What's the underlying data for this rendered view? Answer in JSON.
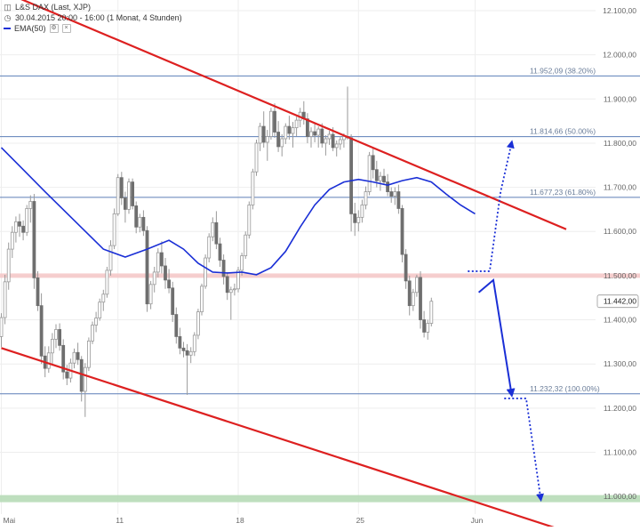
{
  "legend": {
    "title": "L&S DAX (Last, XJP)",
    "period": "30.04.2015 20:00 - 16:00 (1 Monat, 4 Stunden)",
    "ema_label": "EMA(50)",
    "title_icon": "chart-icon",
    "period_icon": "clock-icon"
  },
  "chart_data": {
    "type": "candlestick",
    "y_range": [
      10960,
      12100
    ],
    "y_ticks": [
      {
        "value": 11000,
        "label": "11.000,00"
      },
      {
        "value": 11100,
        "label": "11.100,00"
      },
      {
        "value": 11200,
        "label": "11.200,00"
      },
      {
        "value": 11300,
        "label": "11.300,00"
      },
      {
        "value": 11400,
        "label": "11.400,00"
      },
      {
        "value": 11500,
        "label": "11.500,00"
      },
      {
        "value": 11600,
        "label": "11.600,00"
      },
      {
        "value": 11700,
        "label": "11.700,00"
      },
      {
        "value": 11800,
        "label": "11.800,00"
      },
      {
        "value": 11900,
        "label": "11.900,00"
      },
      {
        "value": 12000,
        "label": "12.000,00"
      },
      {
        "value": 12100,
        "label": "12.100,00"
      }
    ],
    "x_ticks": [
      {
        "index": 0,
        "label": "Mai"
      },
      {
        "index": 32,
        "label": "11"
      },
      {
        "index": 65,
        "label": "18"
      },
      {
        "index": 98,
        "label": "25"
      },
      {
        "index": 130,
        "label": "Jun"
      }
    ],
    "last_price": {
      "value": 11442,
      "label": "11.442,00"
    },
    "fib_levels": [
      {
        "value": 11952.09,
        "label": "11.952,09 (38.20%)"
      },
      {
        "value": 11814.66,
        "label": "11.814,66 (50.00%)"
      },
      {
        "value": 11677.23,
        "label": "11.677,23 (61.80%)"
      },
      {
        "value": 11232.32,
        "label": "11.232,32 (100.00%)"
      }
    ],
    "support_band": 11500,
    "target_band": 10995,
    "trendlines": [
      {
        "from": [
          0,
          12145
        ],
        "to": [
          155,
          11605
        ]
      },
      {
        "from": [
          0,
          11336
        ],
        "to": [
          162,
          10902
        ]
      }
    ],
    "candles": [
      [
        11362,
        11415,
        11338,
        11405
      ],
      [
        11405,
        11502,
        11390,
        11486
      ],
      [
        11486,
        11575,
        11468,
        11560
      ],
      [
        11560,
        11612,
        11540,
        11598
      ],
      [
        11598,
        11634,
        11575,
        11622
      ],
      [
        11622,
        11640,
        11588,
        11612
      ],
      [
        11612,
        11625,
        11580,
        11598
      ],
      [
        11598,
        11660,
        11590,
        11652
      ],
      [
        11652,
        11682,
        11620,
        11668
      ],
      [
        11668,
        11685,
        11470,
        11495
      ],
      [
        11495,
        11510,
        11420,
        11432
      ],
      [
        11432,
        11460,
        11300,
        11318
      ],
      [
        11318,
        11340,
        11270,
        11290
      ],
      [
        11290,
        11340,
        11280,
        11325
      ],
      [
        11325,
        11370,
        11300,
        11356
      ],
      [
        11356,
        11390,
        11336,
        11378
      ],
      [
        11378,
        11392,
        11330,
        11342
      ],
      [
        11342,
        11356,
        11265,
        11282
      ],
      [
        11282,
        11298,
        11252,
        11268
      ],
      [
        11268,
        11312,
        11258,
        11302
      ],
      [
        11302,
        11335,
        11290,
        11326
      ],
      [
        11326,
        11348,
        11298,
        11310
      ],
      [
        11310,
        11318,
        11215,
        11238
      ],
      [
        11238,
        11302,
        11180,
        11292
      ],
      [
        11292,
        11360,
        11284,
        11352
      ],
      [
        11352,
        11396,
        11345,
        11388
      ],
      [
        11388,
        11418,
        11372,
        11404
      ],
      [
        11404,
        11448,
        11398,
        11440
      ],
      [
        11440,
        11468,
        11420,
        11458
      ],
      [
        11458,
        11520,
        11450,
        11512
      ],
      [
        11512,
        11580,
        11500,
        11568
      ],
      [
        11568,
        11652,
        11560,
        11640
      ],
      [
        11640,
        11730,
        11635,
        11722
      ],
      [
        11722,
        11735,
        11660,
        11676
      ],
      [
        11676,
        11690,
        11620,
        11650
      ],
      [
        11650,
        11720,
        11640,
        11712
      ],
      [
        11712,
        11720,
        11650,
        11658
      ],
      [
        11658,
        11668,
        11596,
        11610
      ],
      [
        11610,
        11640,
        11598,
        11632
      ],
      [
        11632,
        11648,
        11590,
        11602
      ],
      [
        11602,
        11612,
        11418,
        11436
      ],
      [
        11436,
        11488,
        11424,
        11480
      ],
      [
        11480,
        11520,
        11462,
        11508
      ],
      [
        11508,
        11562,
        11496,
        11552
      ],
      [
        11552,
        11578,
        11505,
        11522
      ],
      [
        11522,
        11540,
        11470,
        11490
      ],
      [
        11490,
        11515,
        11460,
        11472
      ],
      [
        11472,
        11486,
        11395,
        11412
      ],
      [
        11412,
        11428,
        11346,
        11362
      ],
      [
        11362,
        11382,
        11322,
        11336
      ],
      [
        11336,
        11350,
        11315,
        11330
      ],
      [
        11330,
        11345,
        11230,
        11320
      ],
      [
        11320,
        11338,
        11302,
        11328
      ],
      [
        11328,
        11372,
        11318,
        11365
      ],
      [
        11365,
        11425,
        11356,
        11418
      ],
      [
        11418,
        11482,
        11410,
        11476
      ],
      [
        11476,
        11548,
        11470,
        11540
      ],
      [
        11540,
        11596,
        11530,
        11588
      ],
      [
        11588,
        11632,
        11578,
        11620
      ],
      [
        11620,
        11646,
        11560,
        11572
      ],
      [
        11572,
        11586,
        11520,
        11535
      ],
      [
        11535,
        11548,
        11480,
        11498
      ],
      [
        11498,
        11508,
        11445,
        11462
      ],
      [
        11462,
        11475,
        11400,
        11468
      ],
      [
        11468,
        11482,
        11455,
        11470
      ],
      [
        11470,
        11520,
        11462,
        11512
      ],
      [
        11512,
        11552,
        11500,
        11545
      ],
      [
        11545,
        11600,
        11538,
        11592
      ],
      [
        11592,
        11668,
        11584,
        11660
      ],
      [
        11660,
        11742,
        11650,
        11735
      ],
      [
        11735,
        11808,
        11726,
        11800
      ],
      [
        11800,
        11846,
        11782,
        11838
      ],
      [
        11838,
        11872,
        11790,
        11802
      ],
      [
        11802,
        11830,
        11760,
        11815
      ],
      [
        11815,
        11880,
        11808,
        11872
      ],
      [
        11872,
        11890,
        11812,
        11825
      ],
      [
        11825,
        11850,
        11780,
        11792
      ],
      [
        11792,
        11820,
        11770,
        11810
      ],
      [
        11810,
        11845,
        11798,
        11838
      ],
      [
        11838,
        11862,
        11808,
        11822
      ],
      [
        11822,
        11848,
        11790,
        11835
      ],
      [
        11835,
        11860,
        11815,
        11852
      ],
      [
        11852,
        11880,
        11836,
        11870
      ],
      [
        11870,
        11895,
        11842,
        11855
      ],
      [
        11855,
        11868,
        11800,
        11815
      ],
      [
        11815,
        11836,
        11790,
        11826
      ],
      [
        11826,
        11846,
        11802,
        11818
      ],
      [
        11818,
        11838,
        11790,
        11832
      ],
      [
        11832,
        11845,
        11790,
        11800
      ],
      [
        11800,
        11818,
        11772,
        11810
      ],
      [
        11810,
        11828,
        11796,
        11820
      ],
      [
        11820,
        11836,
        11782,
        11790
      ],
      [
        11790,
        11806,
        11770,
        11798
      ],
      [
        11798,
        11815,
        11785,
        11808
      ],
      [
        11808,
        11822,
        11790,
        11815
      ],
      [
        11815,
        11928,
        11808,
        11812
      ],
      [
        11812,
        11820,
        11600,
        11640
      ],
      [
        11640,
        11665,
        11590,
        11620
      ],
      [
        11620,
        11648,
        11600,
        11632
      ],
      [
        11632,
        11672,
        11620,
        11660
      ],
      [
        11660,
        11702,
        11650,
        11690
      ],
      [
        11690,
        11780,
        11682,
        11772
      ],
      [
        11772,
        11788,
        11720,
        11740
      ],
      [
        11740,
        11760,
        11700,
        11715
      ],
      [
        11715,
        11735,
        11692,
        11725
      ],
      [
        11725,
        11742,
        11705,
        11712
      ],
      [
        11712,
        11730,
        11680,
        11690
      ],
      [
        11690,
        11700,
        11665,
        11680
      ],
      [
        11680,
        11700,
        11660,
        11690
      ],
      [
        11690,
        11706,
        11640,
        11652
      ],
      [
        11652,
        11660,
        11530,
        11548
      ],
      [
        11548,
        11560,
        11470,
        11488
      ],
      [
        11488,
        11500,
        11410,
        11432
      ],
      [
        11432,
        11470,
        11420,
        11462
      ],
      [
        11462,
        11502,
        11452,
        11496
      ],
      [
        11496,
        11510,
        11380,
        11400
      ],
      [
        11400,
        11420,
        11360,
        11372
      ],
      [
        11372,
        11400,
        11355,
        11392
      ],
      [
        11392,
        11450,
        11385,
        11442
      ]
    ],
    "ema_points": [
      [
        0,
        11790
      ],
      [
        6,
        11740
      ],
      [
        12,
        11690
      ],
      [
        20,
        11625
      ],
      [
        28,
        11560
      ],
      [
        34,
        11542
      ],
      [
        40,
        11560
      ],
      [
        46,
        11580
      ],
      [
        50,
        11560
      ],
      [
        54,
        11528
      ],
      [
        58,
        11508
      ],
      [
        62,
        11506
      ],
      [
        66,
        11508
      ],
      [
        70,
        11502
      ],
      [
        74,
        11518
      ],
      [
        78,
        11555
      ],
      [
        82,
        11610
      ],
      [
        86,
        11660
      ],
      [
        90,
        11695
      ],
      [
        94,
        11712
      ],
      [
        98,
        11718
      ],
      [
        102,
        11712
      ],
      [
        106,
        11705
      ],
      [
        110,
        11715
      ],
      [
        114,
        11722
      ],
      [
        118,
        11712
      ],
      [
        122,
        11685
      ],
      [
        126,
        11660
      ],
      [
        130,
        11640
      ]
    ],
    "forecast_arrows": [
      {
        "style": "solid",
        "points": [
          [
            131,
            11462
          ],
          [
            135,
            11490
          ],
          [
            140,
            11232
          ]
        ]
      },
      {
        "style": "dotted",
        "points": [
          [
            128,
            11510
          ],
          [
            134,
            11510
          ],
          [
            137,
            11690
          ],
          [
            140,
            11800
          ]
        ]
      },
      {
        "style": "dotted",
        "points": [
          [
            138,
            11222
          ],
          [
            144,
            11222
          ],
          [
            148,
            10995
          ]
        ]
      }
    ]
  }
}
